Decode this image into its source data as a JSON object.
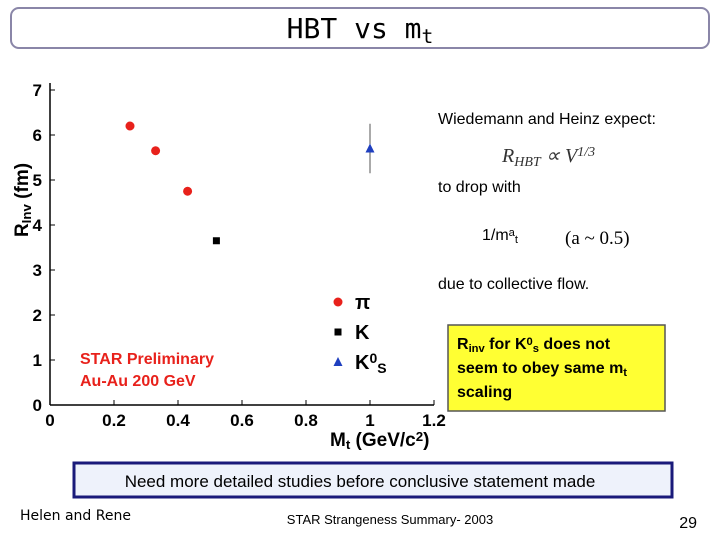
{
  "title": [
    [
      "HBT vs m",
      null
    ],
    [
      "t",
      "sub"
    ]
  ],
  "chart_data": {
    "type": "scatter",
    "xlabel": [
      [
        "M",
        null
      ],
      [
        "t",
        "sub"
      ],
      [
        "  (GeV/c",
        null
      ],
      [
        "2",
        "sup"
      ],
      [
        ")",
        null
      ]
    ],
    "ylabel": [
      [
        "R",
        null
      ],
      [
        "Inv",
        "sub"
      ],
      [
        "  (fm)",
        null
      ]
    ],
    "xlim": [
      0,
      1.2
    ],
    "ylim": [
      0,
      7
    ],
    "xticks": [
      0,
      0.2,
      0.4,
      0.6,
      0.8,
      1,
      1.2
    ],
    "yticks": [
      0,
      1,
      2,
      3,
      4,
      5,
      6,
      7
    ],
    "annotations": [
      "STAR  Preliminary",
      "Au-Au  200  GeV"
    ],
    "series": [
      {
        "name": [
          [
            "π",
            null
          ]
        ],
        "marker": "circle",
        "color": "#e8211b",
        "x": [
          0.25,
          0.33,
          0.43
        ],
        "y": [
          6.2,
          5.65,
          4.75
        ]
      },
      {
        "name": [
          [
            "K",
            null
          ]
        ],
        "marker": "square",
        "color": "#000000",
        "x": [
          0.52
        ],
        "y": [
          3.65
        ]
      },
      {
        "name": [
          [
            "K",
            null
          ],
          [
            "0",
            "sup"
          ],
          [
            "S",
            "sub"
          ]
        ],
        "marker": "triangle",
        "color": "#1f3fbf",
        "x": [
          1
        ],
        "y": [
          5.7
        ],
        "error": [
          0.55
        ]
      }
    ]
  },
  "notes": {
    "expect": "Wiedemann and Heinz expect:",
    "formula": [
      [
        "R",
        null
      ],
      [
        "HBT",
        "sub"
      ],
      [
        "  ∝ V",
        null
      ],
      [
        "1/3",
        "sup"
      ]
    ],
    "drop": "to drop with",
    "scaling_form": [
      [
        "1/m",
        null
      ],
      [
        "a",
        "sup"
      ],
      [
        "t",
        "sub"
      ]
    ],
    "alpha": "(a ~ 0.5)",
    "flow": "due to collective flow.",
    "box": [
      [
        [
          "R",
          null
        ],
        [
          "inv",
          "sub"
        ],
        [
          " for  K",
          null
        ],
        [
          "0",
          "sup"
        ],
        [
          "s",
          "sub"
        ],
        [
          "  does not",
          null
        ]
      ],
      [
        [
          "seem to  obey same m",
          null
        ],
        [
          "t",
          "sub"
        ]
      ],
      [
        [
          "scaling",
          null
        ]
      ]
    ],
    "conclusion": "Need more detailed studies before conclusive statement made"
  },
  "footer": {
    "authors": "Helen and Rene",
    "talk": "STAR Strangeness Summary- 2003",
    "page": "29"
  }
}
